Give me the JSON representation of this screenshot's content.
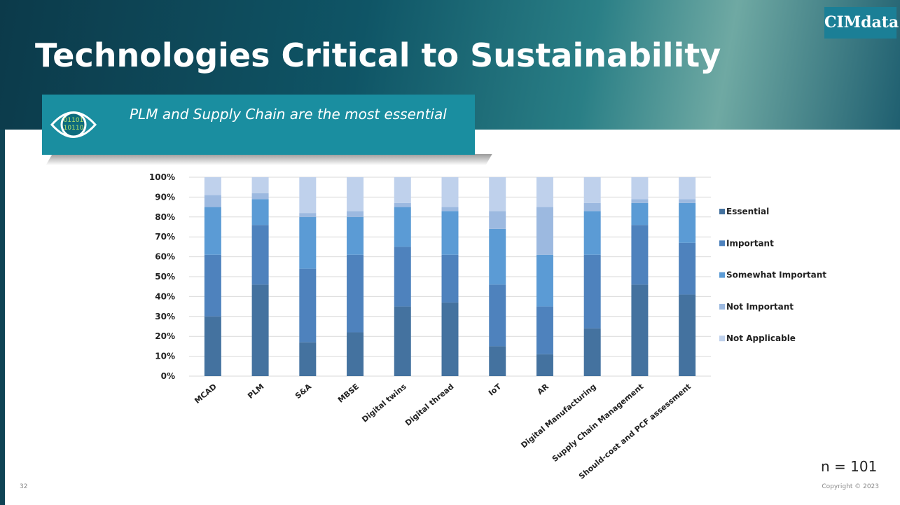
{
  "header": {
    "title": "Technologies Critical to Sustainability",
    "logo": "CIMdata"
  },
  "callout": {
    "text": "PLM and Supply Chain are the most essential"
  },
  "chart_data": {
    "type": "stacked_bar",
    "categories": [
      "MCAD",
      "PLM",
      "S&A",
      "MBSE",
      "Digital twins",
      "Digital thread",
      "IoT",
      "AR",
      "Digital Manufacturing",
      "Supply Chain Management",
      "Should-cost and PCF assessment"
    ],
    "series": [
      {
        "name": "Essential",
        "color": "#44729f",
        "values": [
          30,
          46,
          17,
          22,
          35,
          37,
          15,
          11,
          24,
          46,
          41
        ]
      },
      {
        "name": "Important",
        "color": "#4e82bd",
        "values": [
          31,
          30,
          37,
          39,
          30,
          24,
          31,
          24,
          37,
          30,
          26
        ]
      },
      {
        "name": "Somewhat Important",
        "color": "#5b9bd5",
        "values": [
          24,
          13,
          26,
          19,
          20,
          22,
          28,
          26,
          22,
          11,
          20
        ]
      },
      {
        "name": "Not Important",
        "color": "#9cb9e0",
        "values": [
          6,
          3,
          2,
          3,
          2,
          2,
          9,
          24,
          4,
          2,
          2
        ]
      },
      {
        "name": "Not Applicable",
        "color": "#bfd1ec",
        "values": [
          9,
          8,
          18,
          17,
          13,
          15,
          17,
          15,
          13,
          11,
          11
        ]
      }
    ],
    "ylim": [
      0,
      100
    ],
    "yticks": [
      {
        "value": 0,
        "label": "0%"
      },
      {
        "value": 10,
        "label": "10%"
      },
      {
        "value": 20,
        "label": "20%"
      },
      {
        "value": 30,
        "label": "30%"
      },
      {
        "value": 40,
        "label": "40%"
      },
      {
        "value": 50,
        "label": "50%"
      },
      {
        "value": 60,
        "label": "60%"
      },
      {
        "value": 70,
        "label": "70%"
      },
      {
        "value": 80,
        "label": "80%"
      },
      {
        "value": 90,
        "label": "90%"
      },
      {
        "value": 100,
        "label": "100%"
      }
    ],
    "grid": true,
    "legend": "right"
  },
  "footer": {
    "page_number": "32",
    "copyright": "Copyright © 2023",
    "sample": "n = 101"
  }
}
